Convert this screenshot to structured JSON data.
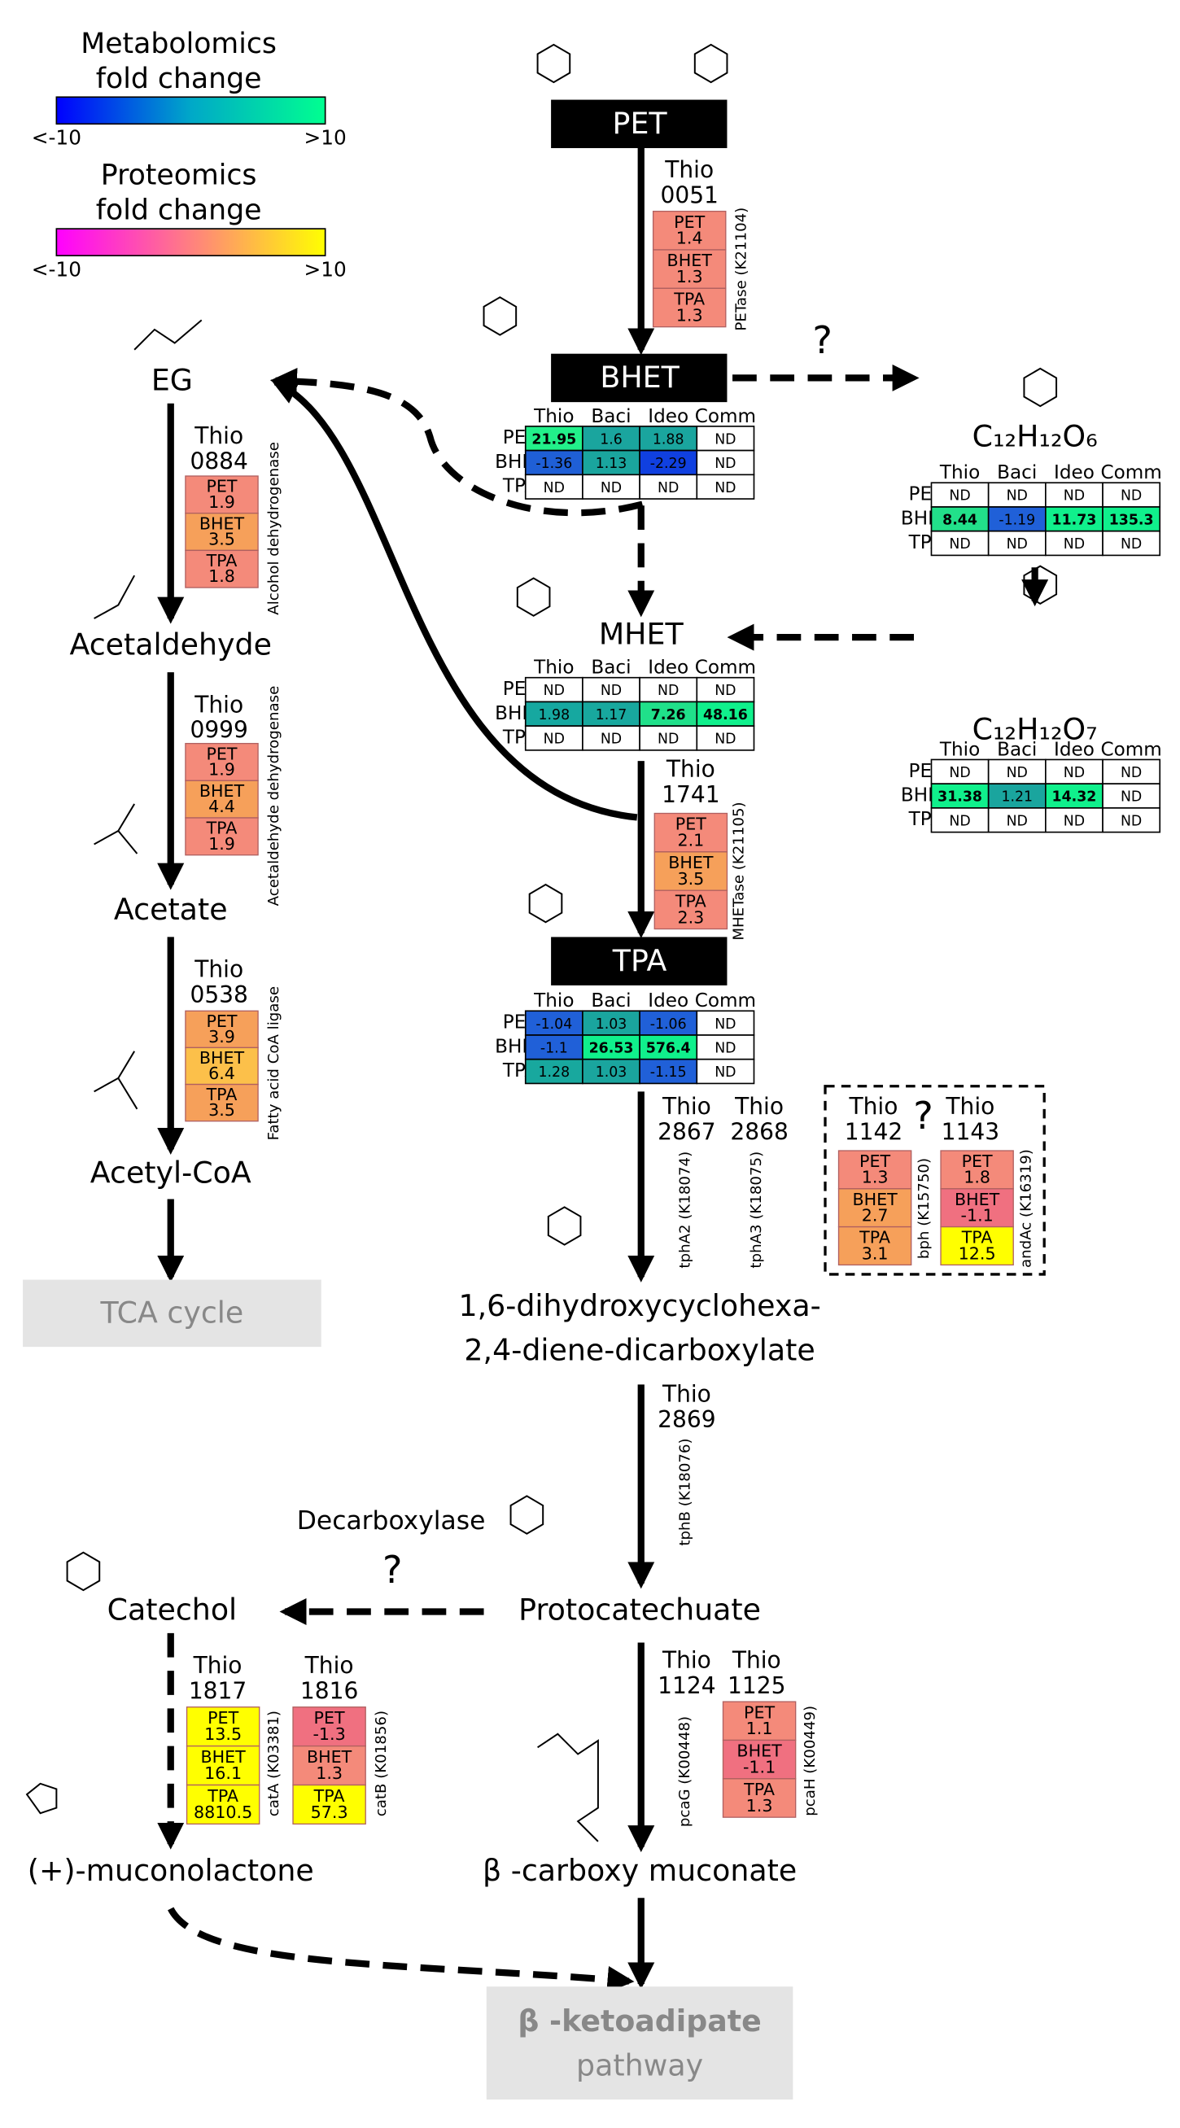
{
  "legend": {
    "metabolomics": {
      "title": [
        "Metabolomics",
        "fold change"
      ],
      "min_label": "<-10",
      "max_label": ">10",
      "colors": [
        "#0000ff",
        "#00a8c8",
        "#00ff90"
      ]
    },
    "proteomics": {
      "title": [
        "Proteomics",
        "fold change"
      ],
      "min_label": "<-10",
      "max_label": ">10",
      "colors": [
        "#ff00ff",
        "#ff8080",
        "#ffff00"
      ]
    }
  },
  "compounds": {
    "pet": "PET",
    "bhet": "BHET",
    "eg": "EG",
    "acetaldehyde": "Acetaldehyde",
    "acetate": "Acetate",
    "acetyl_coa": "Acetyl-CoA",
    "tca": "TCA cycle",
    "mhet": "MHET",
    "c12h12o6": "C₁₂H₁₂O₆",
    "c12h12o7": "C₁₂H₁₂O₇",
    "tpa": "TPA",
    "diene": [
      "1,6-dihydroxycyclohexa-",
      "2,4-diene-dicarboxylate"
    ],
    "protocatechuate": "Protocatechuate",
    "catechol": "Catechol",
    "muconolactone": "(+)-muconolactone",
    "carboxy_muconate": "β -carboxy muconate",
    "ketoadipate": [
      "β -ketoadipate",
      "pathway"
    ]
  },
  "annotations": {
    "question_marks": [
      "?",
      "?",
      "?"
    ],
    "decarboxylase": "Decarboxylase"
  },
  "metabolomics_tables": [
    {
      "columns": [
        "Thio",
        "Baci",
        "Ideo",
        "Comm"
      ],
      "rows": [
        {
          "label": "PET",
          "values": [
            21.95,
            1.6,
            1.88,
            "ND"
          ],
          "colors": [
            "#22f08a",
            "#1aa59e",
            "#1aa59e",
            "#ffffff"
          ]
        },
        {
          "label": "BHET",
          "values": [
            -1.36,
            1.13,
            -2.29,
            "ND"
          ],
          "colors": [
            "#1f5fd6",
            "#1aa59e",
            "#1040e0",
            "#ffffff"
          ]
        },
        {
          "label": "TPA",
          "values": [
            "ND",
            "ND",
            "ND",
            "ND"
          ],
          "colors": [
            "#ffffff",
            "#ffffff",
            "#ffffff",
            "#ffffff"
          ]
        }
      ]
    },
    {
      "columns": [
        "Thio",
        "Baci",
        "Ideo",
        "Comm"
      ],
      "rows": [
        {
          "label": "PET",
          "values": [
            "ND",
            "ND",
            "ND",
            "ND"
          ],
          "colors": [
            "#ffffff",
            "#ffffff",
            "#ffffff",
            "#ffffff"
          ]
        },
        {
          "label": "BHET",
          "values": [
            8.44,
            -1.19,
            11.73,
            135.3
          ],
          "colors": [
            "#22e08a",
            "#2060d8",
            "#10f08c",
            "#10f08c"
          ]
        },
        {
          "label": "TPA",
          "values": [
            "ND",
            "ND",
            "ND",
            "ND"
          ],
          "colors": [
            "#ffffff",
            "#ffffff",
            "#ffffff",
            "#ffffff"
          ]
        }
      ]
    },
    {
      "columns": [
        "Thio",
        "Baci",
        "Ideo",
        "Comm"
      ],
      "rows": [
        {
          "label": "PET",
          "values": [
            "ND",
            "ND",
            "ND",
            "ND"
          ],
          "colors": [
            "#ffffff",
            "#ffffff",
            "#ffffff",
            "#ffffff"
          ]
        },
        {
          "label": "BHET",
          "values": [
            1.98,
            1.17,
            7.26,
            48.16
          ],
          "colors": [
            "#16a8a0",
            "#18a89e",
            "#20e08a",
            "#10f08c"
          ]
        },
        {
          "label": "TPA",
          "values": [
            "ND",
            "ND",
            "ND",
            "ND"
          ],
          "colors": [
            "#ffffff",
            "#ffffff",
            "#ffffff",
            "#ffffff"
          ]
        }
      ]
    },
    {
      "columns": [
        "Thio",
        "Baci",
        "Ideo",
        "Comm"
      ],
      "rows": [
        {
          "label": "PET",
          "values": [
            "ND",
            "ND",
            "ND",
            "ND"
          ],
          "colors": [
            "#ffffff",
            "#ffffff",
            "#ffffff",
            "#ffffff"
          ]
        },
        {
          "label": "BHET",
          "values": [
            31.38,
            1.21,
            14.32,
            "ND"
          ],
          "colors": [
            "#10f08c",
            "#1aa59e",
            "#10f08c",
            "#ffffff"
          ]
        },
        {
          "label": "TPA",
          "values": [
            "ND",
            "ND",
            "ND",
            "ND"
          ],
          "colors": [
            "#ffffff",
            "#ffffff",
            "#ffffff",
            "#ffffff"
          ]
        }
      ]
    },
    {
      "columns": [
        "Thio",
        "Baci",
        "Ideo",
        "Comm"
      ],
      "rows": [
        {
          "label": "PET",
          "values": [
            -1.04,
            1.03,
            -1.06,
            "ND"
          ],
          "colors": [
            "#2060d8",
            "#1aa59e",
            "#2060d8",
            "#ffffff"
          ]
        },
        {
          "label": "BHET",
          "values": [
            -1.1,
            26.53,
            576.4,
            "ND"
          ],
          "colors": [
            "#2060d8",
            "#10f08c",
            "#10f08c",
            "#ffffff"
          ]
        },
        {
          "label": "TPA",
          "values": [
            1.28,
            1.03,
            -1.15,
            "ND"
          ],
          "colors": [
            "#18a89e",
            "#1aa59e",
            "#2060d8",
            "#ffffff"
          ]
        }
      ]
    }
  ],
  "enzymes": [
    {
      "gene": [
        "Thio",
        "0051"
      ],
      "name": "PETase (K21104)",
      "proteomics": [
        {
          "label": "PET",
          "value": 1.4,
          "color": "#f48a7a"
        },
        {
          "label": "BHET",
          "value": 1.3,
          "color": "#f48a7a"
        },
        {
          "label": "TPA",
          "value": 1.3,
          "color": "#f48a7a"
        }
      ]
    },
    {
      "gene": [
        "Thio",
        "0884"
      ],
      "name": "Alcohol dehydrogenase",
      "proteomics": [
        {
          "label": "PET",
          "value": 1.9,
          "color": "#f48a7a"
        },
        {
          "label": "BHET",
          "value": 3.5,
          "color": "#f6a05a"
        },
        {
          "label": "TPA",
          "value": 1.8,
          "color": "#f48a7a"
        }
      ]
    },
    {
      "gene": [
        "Thio",
        "0999"
      ],
      "name": "Acetaldehyde dehydrogenase",
      "proteomics": [
        {
          "label": "PET",
          "value": 1.9,
          "color": "#f48a7a"
        },
        {
          "label": "BHET",
          "value": 4.4,
          "color": "#f6a05a"
        },
        {
          "label": "TPA",
          "value": 1.9,
          "color": "#f48a7a"
        }
      ]
    },
    {
      "gene": [
        "Thio",
        "0538"
      ],
      "name": "Fatty acid CoA ligase",
      "proteomics": [
        {
          "label": "PET",
          "value": 3.9,
          "color": "#f6a05a"
        },
        {
          "label": "BHET",
          "value": 6.4,
          "color": "#fcc04a"
        },
        {
          "label": "TPA",
          "value": 3.5,
          "color": "#f6a05a"
        }
      ]
    },
    {
      "gene": [
        "Thio",
        "1741"
      ],
      "name": "MHETase (K21105)",
      "proteomics": [
        {
          "label": "PET",
          "value": 2.1,
          "color": "#f48a7a"
        },
        {
          "label": "BHET",
          "value": 3.5,
          "color": "#f6a05a"
        },
        {
          "label": "TPA",
          "value": 2.3,
          "color": "#f48a7a"
        }
      ]
    },
    {
      "gene": [
        "Thio",
        "2867"
      ],
      "name": "tphA2 (K18074)"
    },
    {
      "gene": [
        "Thio",
        "2868"
      ],
      "name": "tphA3 (K18075)"
    },
    {
      "gene": [
        "Thio",
        "1142"
      ],
      "name": "bph (K15750)",
      "proteomics": [
        {
          "label": "PET",
          "value": 1.3,
          "color": "#f48a7a"
        },
        {
          "label": "BHET",
          "value": 2.7,
          "color": "#f6a05a"
        },
        {
          "label": "TPA",
          "value": 3.1,
          "color": "#f6a05a"
        }
      ]
    },
    {
      "gene": [
        "Thio",
        "1143"
      ],
      "name": "andAc (K16319)",
      "proteomics": [
        {
          "label": "PET",
          "value": 1.8,
          "color": "#f48a7a"
        },
        {
          "label": "BHET",
          "value": -1.1,
          "color": "#f07080"
        },
        {
          "label": "TPA",
          "value": 12.5,
          "color": "#ffff00"
        }
      ]
    },
    {
      "gene": [
        "Thio",
        "2869"
      ],
      "name": "tphB (K18076)"
    },
    {
      "gene": [
        "Thio",
        "1817"
      ],
      "name": "catA (K03381)",
      "proteomics": [
        {
          "label": "PET",
          "value": 13.5,
          "color": "#ffff00"
        },
        {
          "label": "BHET",
          "value": 16.1,
          "color": "#ffff00"
        },
        {
          "label": "TPA",
          "value": 8810.5,
          "color": "#ffff00"
        }
      ]
    },
    {
      "gene": [
        "Thio",
        "1816"
      ],
      "name": "catB (K01856)",
      "proteomics": [
        {
          "label": "PET",
          "value": -1.3,
          "color": "#f07080"
        },
        {
          "label": "BHET",
          "value": 1.3,
          "color": "#f48a7a"
        },
        {
          "label": "TPA",
          "value": 57.3,
          "color": "#ffff00"
        }
      ]
    },
    {
      "gene": [
        "Thio",
        "1124"
      ],
      "name": "pcaG (K00448)"
    },
    {
      "gene": [
        "Thio",
        "1125"
      ],
      "name": "pcaH (K00449)",
      "proteomics": [
        {
          "label": "PET",
          "value": 1.1,
          "color": "#f48a7a"
        },
        {
          "label": "BHET",
          "value": -1.1,
          "color": "#f07080"
        },
        {
          "label": "TPA",
          "value": 1.3,
          "color": "#f48a7a"
        }
      ]
    }
  ]
}
